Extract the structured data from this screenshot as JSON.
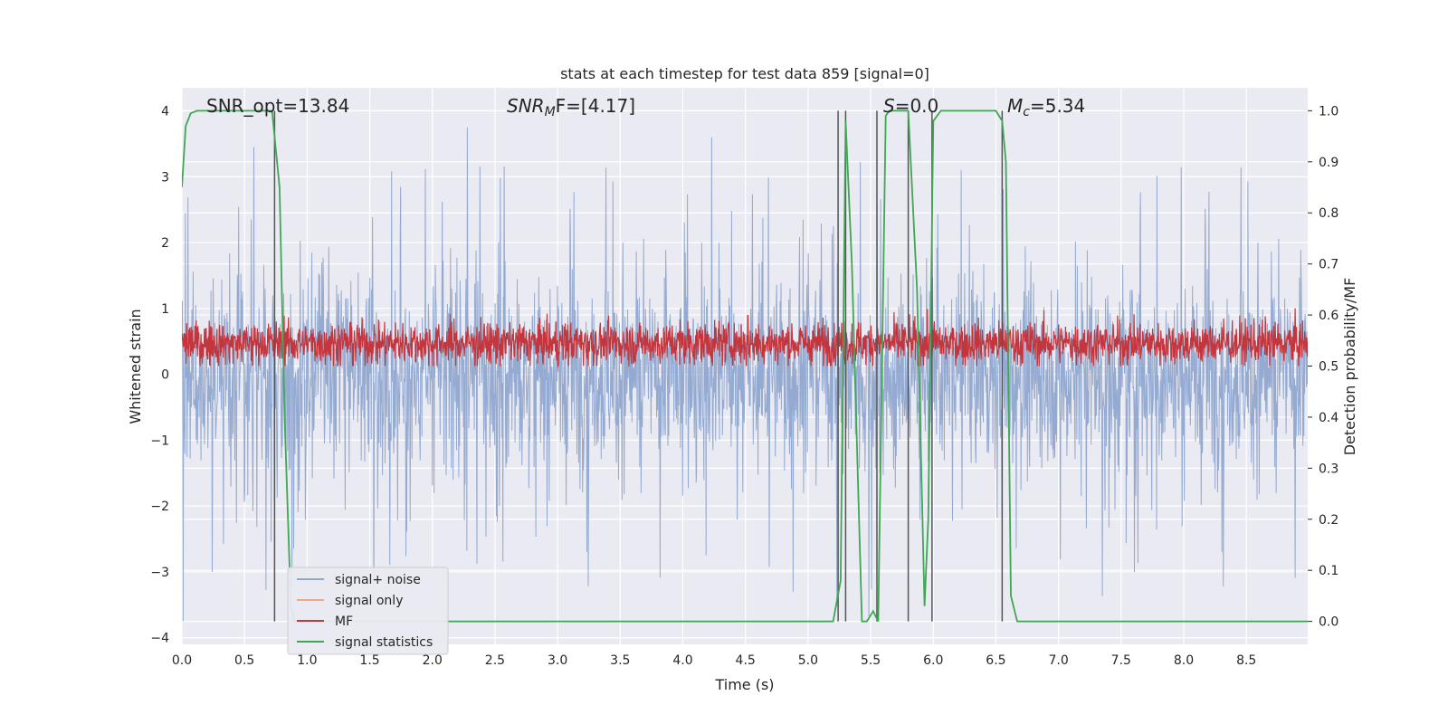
{
  "chart_data": {
    "type": "line",
    "title": "stats at each timestep for test data 859 [signal=0]",
    "xlabel": "Time (s)",
    "ylabel": "Whitened strain",
    "y2label": "Detection probability/MF",
    "xlim": [
      0.0,
      8.99
    ],
    "ylim": [
      -4.1,
      4.35
    ],
    "y2lim": [
      -0.045,
      1.045
    ],
    "xticks": [
      "0.0",
      "0.5",
      "1.0",
      "1.5",
      "2.0",
      "2.5",
      "3.0",
      "3.5",
      "4.0",
      "4.5",
      "5.0",
      "5.5",
      "6.0",
      "6.5",
      "7.0",
      "7.5",
      "8.0",
      "8.5"
    ],
    "yticks": [
      "4",
      "3",
      "2",
      "1",
      "0",
      "−1",
      "−2",
      "−3",
      "−4"
    ],
    "y2ticks": [
      "1.0",
      "0.9",
      "0.8",
      "0.7",
      "0.6",
      "0.5",
      "0.4",
      "0.3",
      "0.2",
      "0.1",
      "0.0"
    ],
    "grid": true,
    "legend_position": "lower-left",
    "annotations": {
      "snr_opt": "SNR_opt=13.84",
      "snr_mf_base": "SNR",
      "snr_mf_sub": "M",
      "snr_mf_rest": "F=[4.17]",
      "s_base": "S",
      "s_rest": "=0.0",
      "mc_base": "M",
      "mc_sub": "c",
      "mc_rest": "=5.34"
    },
    "series": [
      {
        "name": "signal+ noise",
        "color": "#8fa6cf",
        "description": "noise band approx between -2 and 2, spikes to about +/-3.7"
      },
      {
        "name": "signal only",
        "color": "#f3a683"
      },
      {
        "name": "MF",
        "color": "#c4363d",
        "y2_range": [
          0.5,
          0.64
        ]
      },
      {
        "name": "signal statistics",
        "color": "#3fa654",
        "x": [
          0.0,
          0.03,
          0.07,
          0.12,
          0.2,
          0.5,
          0.72,
          0.78,
          0.82,
          0.87,
          0.9,
          1.0,
          2.0,
          3.0,
          4.0,
          5.0,
          5.2,
          5.26,
          5.3,
          5.35,
          5.43,
          5.47,
          5.52,
          5.56,
          5.62,
          5.65,
          5.75,
          5.8,
          5.87,
          5.93,
          5.96,
          6.0,
          6.06,
          6.2,
          6.5,
          6.55,
          6.58,
          6.62,
          6.67,
          6.72,
          7.0,
          8.0,
          8.99
        ],
        "y": [
          0.85,
          0.97,
          0.995,
          1.0,
          1.0,
          1.0,
          1.0,
          0.85,
          0.4,
          0.03,
          0.0,
          0.0,
          0.0,
          0.0,
          0.0,
          0.0,
          0.0,
          0.08,
          0.98,
          0.7,
          0.0,
          0.0,
          0.02,
          0.0,
          0.99,
          1.0,
          1.0,
          1.0,
          0.65,
          0.03,
          0.2,
          0.98,
          1.0,
          1.0,
          1.0,
          0.98,
          0.9,
          0.05,
          0.0,
          0.0,
          0.0,
          0.0,
          0.0
        ]
      }
    ],
    "vlines_x": [
      0.74,
      5.24,
      5.3,
      5.55,
      5.8,
      5.99,
      6.55
    ],
    "vlines_y2_range": [
      0.0,
      1.0
    ]
  }
}
